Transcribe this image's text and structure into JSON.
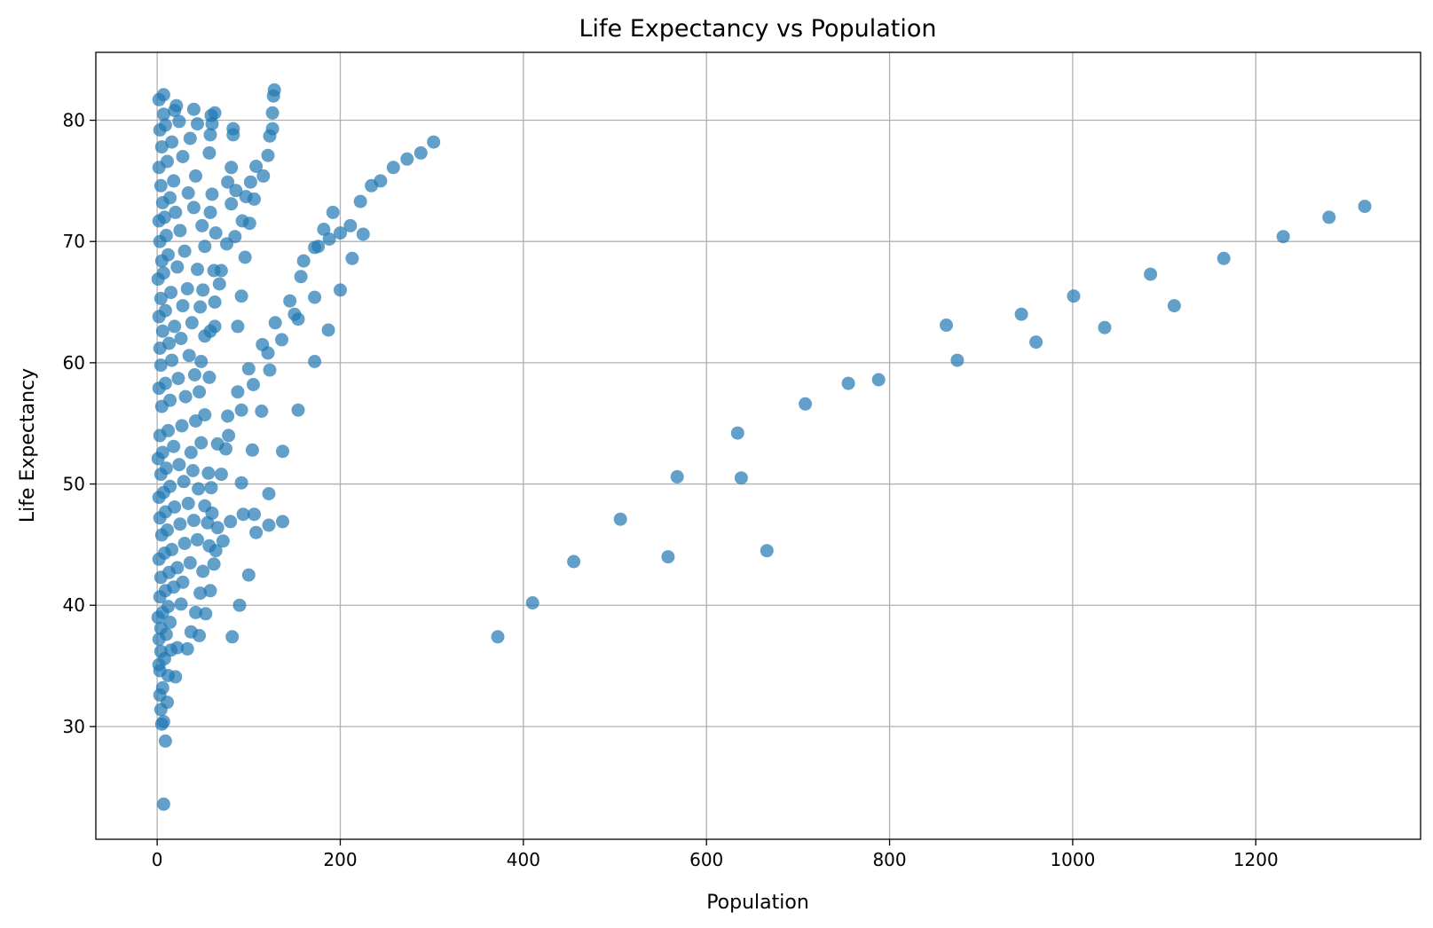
{
  "chart_data": {
    "type": "scatter",
    "title": "Life Expectancy vs Population",
    "xlabel": "Population",
    "ylabel": "Life Expectancy",
    "xlim": [
      -67,
      1380
    ],
    "ylim": [
      20.7,
      85.6
    ],
    "xticks": [
      0,
      200,
      400,
      600,
      800,
      1000,
      1200
    ],
    "yticks": [
      30,
      40,
      50,
      60,
      70,
      80
    ],
    "grid": true,
    "marker_color": "#1f77b4",
    "marker_alpha": 0.7,
    "series": [
      {
        "points": [
          [
            7,
            23.6
          ],
          [
            9,
            28.8
          ],
          [
            5,
            30.2
          ],
          [
            7,
            30.4
          ],
          [
            4,
            31.4
          ],
          [
            11,
            32.0
          ],
          [
            3,
            32.6
          ],
          [
            6,
            33.2
          ],
          [
            3,
            34.6
          ],
          [
            12,
            34.2
          ],
          [
            2,
            35.1
          ],
          [
            8,
            35.6
          ],
          [
            20,
            34.1
          ],
          [
            4,
            36.2
          ],
          [
            15,
            36.3
          ],
          [
            22,
            36.5
          ],
          [
            33,
            36.4
          ],
          [
            2,
            37.2
          ],
          [
            10,
            37.6
          ],
          [
            4,
            38.1
          ],
          [
            14,
            38.6
          ],
          [
            37,
            37.8
          ],
          [
            46,
            37.5
          ],
          [
            82,
            37.4
          ],
          [
            1,
            39.0
          ],
          [
            6,
            39.4
          ],
          [
            12,
            39.9
          ],
          [
            26,
            40.1
          ],
          [
            42,
            39.4
          ],
          [
            53,
            39.3
          ],
          [
            90,
            40.0
          ],
          [
            3,
            40.7
          ],
          [
            9,
            41.2
          ],
          [
            18,
            41.5
          ],
          [
            28,
            41.9
          ],
          [
            47,
            41.0
          ],
          [
            58,
            41.2
          ],
          [
            4,
            42.3
          ],
          [
            13,
            42.7
          ],
          [
            22,
            43.1
          ],
          [
            36,
            43.5
          ],
          [
            50,
            42.8
          ],
          [
            62,
            43.4
          ],
          [
            100,
            42.5
          ],
          [
            2,
            43.8
          ],
          [
            8,
            44.3
          ],
          [
            16,
            44.6
          ],
          [
            30,
            45.1
          ],
          [
            44,
            45.4
          ],
          [
            57,
            44.9
          ],
          [
            64,
            44.5
          ],
          [
            72,
            45.3
          ],
          [
            5,
            45.8
          ],
          [
            11,
            46.2
          ],
          [
            25,
            46.7
          ],
          [
            40,
            47.0
          ],
          [
            55,
            46.8
          ],
          [
            66,
            46.4
          ],
          [
            80,
            46.9
          ],
          [
            108,
            46.0
          ],
          [
            122,
            46.6
          ],
          [
            137,
            46.9
          ],
          [
            3,
            47.2
          ],
          [
            9,
            47.7
          ],
          [
            19,
            48.1
          ],
          [
            34,
            48.4
          ],
          [
            52,
            48.2
          ],
          [
            60,
            47.6
          ],
          [
            94,
            47.5
          ],
          [
            106,
            47.5
          ],
          [
            2,
            48.9
          ],
          [
            7,
            49.3
          ],
          [
            14,
            49.8
          ],
          [
            29,
            50.2
          ],
          [
            45,
            49.6
          ],
          [
            59,
            49.7
          ],
          [
            92,
            50.1
          ],
          [
            122,
            49.2
          ],
          [
            4,
            50.8
          ],
          [
            10,
            51.3
          ],
          [
            24,
            51.6
          ],
          [
            39,
            51.1
          ],
          [
            56,
            50.9
          ],
          [
            70,
            50.8
          ],
          [
            1,
            52.1
          ],
          [
            6,
            52.6
          ],
          [
            18,
            53.1
          ],
          [
            37,
            52.6
          ],
          [
            48,
            53.4
          ],
          [
            66,
            53.3
          ],
          [
            75,
            52.9
          ],
          [
            104,
            52.8
          ],
          [
            137,
            52.7
          ],
          [
            3,
            54.0
          ],
          [
            12,
            54.4
          ],
          [
            27,
            54.8
          ],
          [
            42,
            55.2
          ],
          [
            52,
            55.7
          ],
          [
            78,
            54.0
          ],
          [
            77,
            55.6
          ],
          [
            92,
            56.1
          ],
          [
            114,
            56.0
          ],
          [
            154,
            56.1
          ],
          [
            5,
            56.4
          ],
          [
            14,
            56.9
          ],
          [
            31,
            57.2
          ],
          [
            46,
            57.6
          ],
          [
            88,
            57.6
          ],
          [
            105,
            58.2
          ],
          [
            2,
            57.9
          ],
          [
            9,
            58.3
          ],
          [
            23,
            58.7
          ],
          [
            41,
            59.0
          ],
          [
            57,
            58.8
          ],
          [
            100,
            59.5
          ],
          [
            123,
            59.4
          ],
          [
            4,
            59.8
          ],
          [
            16,
            60.2
          ],
          [
            35,
            60.6
          ],
          [
            48,
            60.1
          ],
          [
            172,
            60.1
          ],
          [
            3,
            61.2
          ],
          [
            13,
            61.6
          ],
          [
            26,
            62.0
          ],
          [
            52,
            62.2
          ],
          [
            115,
            61.5
          ],
          [
            121,
            60.8
          ],
          [
            136,
            61.9
          ],
          [
            6,
            62.6
          ],
          [
            19,
            63.0
          ],
          [
            38,
            63.3
          ],
          [
            58,
            62.6
          ],
          [
            63,
            63.0
          ],
          [
            88,
            63.0
          ],
          [
            129,
            63.3
          ],
          [
            187,
            62.7
          ],
          [
            2,
            63.8
          ],
          [
            9,
            64.3
          ],
          [
            28,
            64.7
          ],
          [
            47,
            64.6
          ],
          [
            63,
            65.0
          ],
          [
            150,
            64.0
          ],
          [
            154,
            63.6
          ],
          [
            4,
            65.3
          ],
          [
            15,
            65.8
          ],
          [
            33,
            66.1
          ],
          [
            50,
            66.0
          ],
          [
            68,
            66.5
          ],
          [
            92,
            65.5
          ],
          [
            145,
            65.1
          ],
          [
            172,
            65.4
          ],
          [
            200,
            66.0
          ],
          [
            1,
            66.9
          ],
          [
            7,
            67.4
          ],
          [
            22,
            67.9
          ],
          [
            44,
            67.7
          ],
          [
            62,
            67.6
          ],
          [
            70,
            67.6
          ],
          [
            157,
            67.1
          ],
          [
            5,
            68.4
          ],
          [
            12,
            68.9
          ],
          [
            30,
            69.2
          ],
          [
            52,
            69.6
          ],
          [
            76,
            69.8
          ],
          [
            96,
            68.7
          ],
          [
            160,
            68.4
          ],
          [
            213,
            68.6
          ],
          [
            3,
            70.0
          ],
          [
            10,
            70.5
          ],
          [
            25,
            70.9
          ],
          [
            49,
            71.3
          ],
          [
            64,
            70.7
          ],
          [
            85,
            70.4
          ],
          [
            172,
            69.5
          ],
          [
            176,
            69.6
          ],
          [
            188,
            70.2
          ],
          [
            200,
            70.7
          ],
          [
            225,
            70.6
          ],
          [
            2,
            71.7
          ],
          [
            8,
            72.0
          ],
          [
            20,
            72.4
          ],
          [
            40,
            72.8
          ],
          [
            58,
            72.4
          ],
          [
            93,
            71.7
          ],
          [
            101,
            71.5
          ],
          [
            182,
            71.0
          ],
          [
            211,
            71.3
          ],
          [
            6,
            73.2
          ],
          [
            14,
            73.6
          ],
          [
            34,
            74.0
          ],
          [
            60,
            73.9
          ],
          [
            81,
            73.1
          ],
          [
            97,
            73.7
          ],
          [
            106,
            73.5
          ],
          [
            192,
            72.4
          ],
          [
            222,
            73.3
          ],
          [
            4,
            74.6
          ],
          [
            18,
            75.0
          ],
          [
            42,
            75.4
          ],
          [
            77,
            74.9
          ],
          [
            86,
            74.2
          ],
          [
            102,
            74.9
          ],
          [
            116,
            75.4
          ],
          [
            234,
            74.6
          ],
          [
            244,
            75.0
          ],
          [
            2,
            76.1
          ],
          [
            11,
            76.6
          ],
          [
            28,
            77.0
          ],
          [
            57,
            77.3
          ],
          [
            81,
            76.1
          ],
          [
            108,
            76.2
          ],
          [
            258,
            76.1
          ],
          [
            273,
            76.8
          ],
          [
            288,
            77.3
          ],
          [
            5,
            77.8
          ],
          [
            16,
            78.2
          ],
          [
            36,
            78.5
          ],
          [
            58,
            78.8
          ],
          [
            83,
            78.8
          ],
          [
            121,
            77.1
          ],
          [
            123,
            78.7
          ],
          [
            302,
            78.2
          ],
          [
            3,
            79.2
          ],
          [
            9,
            79.6
          ],
          [
            24,
            79.9
          ],
          [
            44,
            79.7
          ],
          [
            60,
            79.7
          ],
          [
            83,
            79.3
          ],
          [
            126,
            79.3
          ],
          [
            7,
            80.5
          ],
          [
            19,
            80.8
          ],
          [
            40,
            80.9
          ],
          [
            59,
            80.4
          ],
          [
            63,
            80.6
          ],
          [
            126,
            80.6
          ],
          [
            2,
            81.7
          ],
          [
            7,
            82.1
          ],
          [
            21,
            81.2
          ],
          [
            127,
            82.0
          ],
          [
            128,
            82.5
          ],
          [
            372,
            37.4
          ],
          [
            410,
            40.2
          ],
          [
            455,
            43.6
          ],
          [
            506,
            47.1
          ],
          [
            558,
            44.0
          ],
          [
            568,
            50.6
          ],
          [
            634,
            54.2
          ],
          [
            638,
            50.5
          ],
          [
            666,
            44.5
          ],
          [
            708,
            56.6
          ],
          [
            755,
            58.3
          ],
          [
            788,
            58.6
          ],
          [
            862,
            63.1
          ],
          [
            874,
            60.2
          ],
          [
            944,
            64.0
          ],
          [
            960,
            61.7
          ],
          [
            1001,
            65.5
          ],
          [
            1035,
            62.9
          ],
          [
            1085,
            67.3
          ],
          [
            1111,
            64.7
          ],
          [
            1165,
            68.6
          ],
          [
            1230,
            70.4
          ],
          [
            1280,
            72.0
          ],
          [
            1319,
            72.9
          ]
        ]
      }
    ]
  }
}
